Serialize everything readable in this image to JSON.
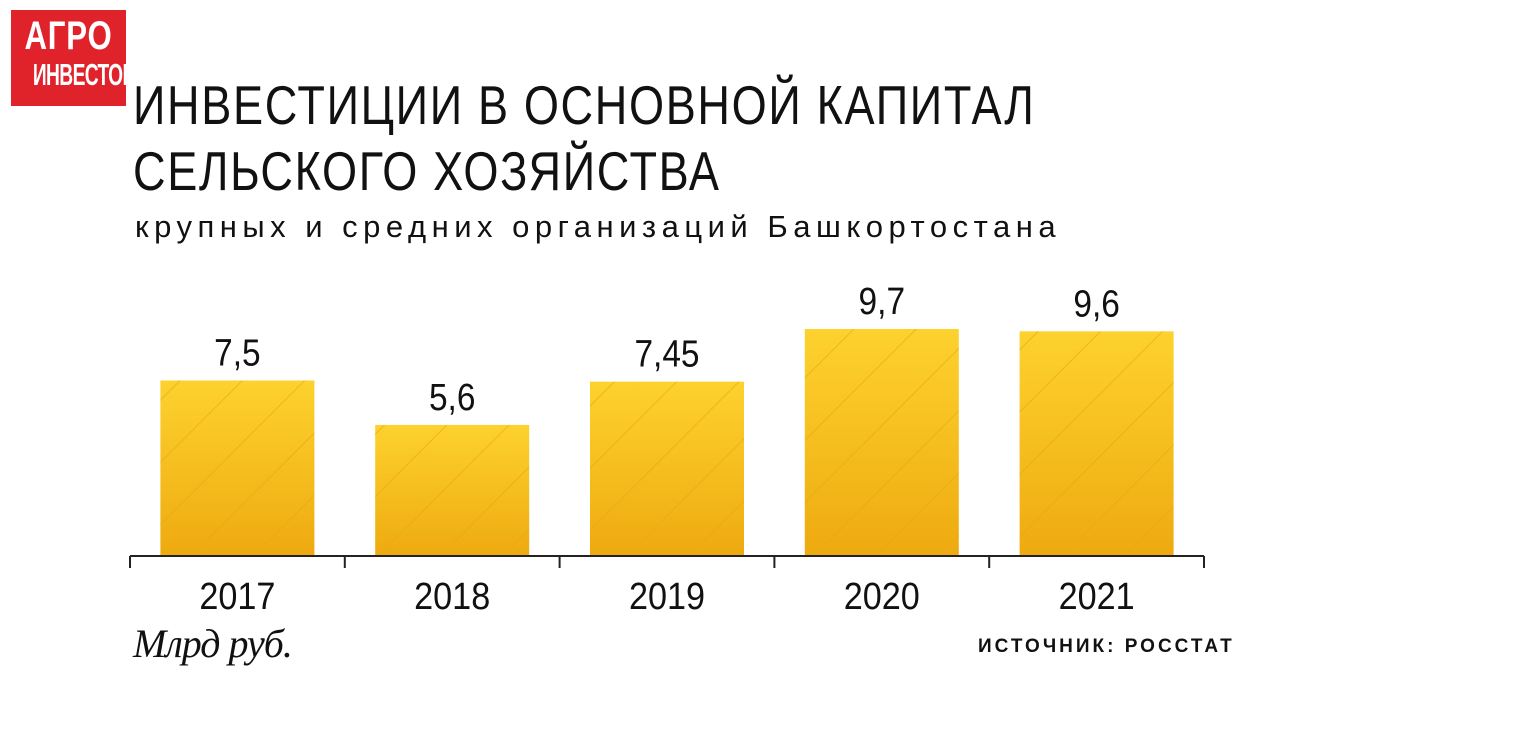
{
  "logo": {
    "line1": "АГРО",
    "line2": "ИНВЕСТОР"
  },
  "header": {
    "title_line1": "ИНВЕСТИЦИИ В ОСНОВНОЙ КАПИТАЛ",
    "title_line2": "СЕЛЬСКОГО ХОЗЯЙСТВА",
    "subtitle": "крупных и средних организаций Башкортостана"
  },
  "footer": {
    "unit": "Млрд руб.",
    "source": "ИСТОЧНИК: РОССТАТ"
  },
  "colors": {
    "bar_top": "#fdd22e",
    "bar_bottom": "#eeaa10",
    "hatch": "#e8a70f",
    "axis": "#222222",
    "logo_bg": "#e0222b"
  },
  "chart_data": {
    "type": "bar",
    "categories": [
      "2017",
      "2018",
      "2019",
      "2020",
      "2021"
    ],
    "values": [
      7.5,
      5.6,
      7.45,
      9.7,
      9.6
    ],
    "value_labels": [
      "7,5",
      "5,6",
      "7,45",
      "9,7",
      "9,6"
    ],
    "title": "ИНВЕСТИЦИИ В ОСНОВНОЙ КАПИТАЛ СЕЛЬСКОГО ХОЗЯЙСТВА",
    "subtitle": "крупных и средних организаций Башкортостана",
    "ylabel": "Млрд руб.",
    "ylim": [
      0,
      9.7
    ],
    "grid": false,
    "legend": "none"
  }
}
